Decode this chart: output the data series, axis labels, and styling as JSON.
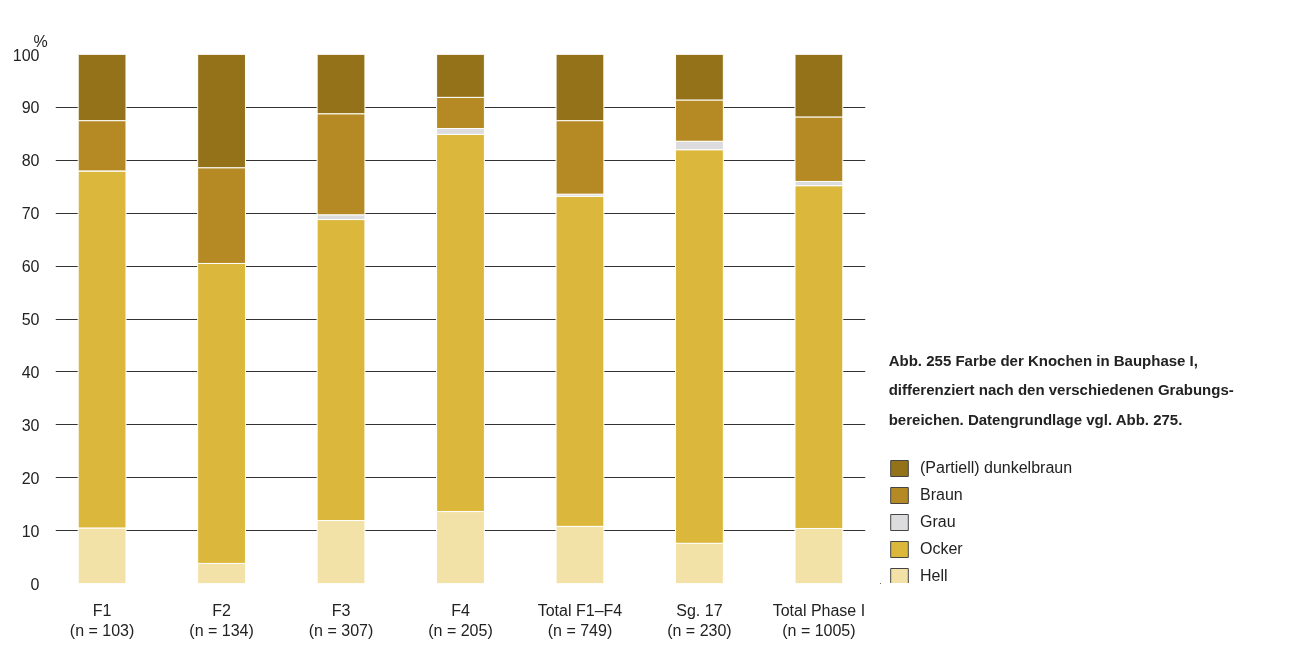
{
  "chart_data": {
    "type": "bar",
    "stacked": true,
    "title": "Abb. 255    Farbe der Knochen in Bauphase I,\ndifferenziert nach den verschiedenen Grabungs-\nbereichen. Datengrundlage vgl. Abb. 275.",
    "ylabel": "%",
    "categories": [
      "F1\n(n = 103)",
      "F2\n(n = 134)",
      "F3\n(n = 307)",
      "F4\n(n = 205)",
      "Total F1–F4\n(n = 749)",
      "Sg. 17\n(n = 230)",
      "Total Phase I\n(n = 1005)"
    ],
    "series": [
      {
        "name": "Hell",
        "color": "#f3e2a7",
        "values": [
          10.5,
          3.8,
          11.9,
          13.6,
          10.8,
          7.6,
          10.4
        ]
      },
      {
        "name": "Ocker",
        "color": "#dbb83c",
        "values": [
          67.5,
          56.7,
          56.9,
          71.3,
          62.4,
          74.4,
          64.8
        ]
      },
      {
        "name": "Grau",
        "color": "#dcdcde",
        "values": [
          0,
          0,
          0.9,
          1.1,
          0.4,
          1.6,
          0.8
        ]
      },
      {
        "name": "Braun",
        "color": "#b58a24",
        "values": [
          9.5,
          18.1,
          19.1,
          5.9,
          13.9,
          7.8,
          12.2
        ]
      },
      {
        "name": "(Partiell) dunkelbraun",
        "color": "#937219",
        "values": [
          12.5,
          21.4,
          11.3,
          8.1,
          12.5,
          8.6,
          11.8
        ]
      }
    ],
    "ylim": [
      0,
      100
    ],
    "yticks": [
      0,
      10,
      20,
      30,
      40,
      50,
      60,
      70,
      80,
      90,
      100
    ],
    "grid": "y",
    "legend": "right"
  }
}
